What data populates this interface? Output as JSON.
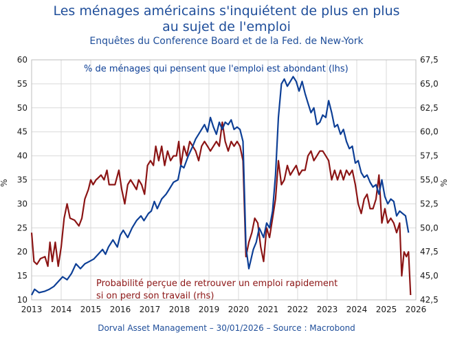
{
  "chart_data": {
    "type": "line",
    "title_line1": "Les ménages américains s'inquiétent de plus en plus",
    "title_line2": "au sujet de l'emploi",
    "subtitle": "Enquêtes du Conference Board et de la Fed. de New-York",
    "footer": "Dorval Asset Management – 30/01/2026 –  Source : Macrobond",
    "ylabel_left": "%",
    "ylabel_right": "%",
    "x_ticks": [
      "2013",
      "2014",
      "2015",
      "2016",
      "2017",
      "2018",
      "2019",
      "2020",
      "2021",
      "2022",
      "2023",
      "2024",
      "2025",
      "2026"
    ],
    "x_range": [
      2013,
      2026
    ],
    "left_axis": {
      "min": 10,
      "max": 60,
      "ticks": [
        "10",
        "15",
        "20",
        "25",
        "30",
        "35",
        "40",
        "45",
        "50",
        "55",
        "60"
      ]
    },
    "right_axis": {
      "min": 42.5,
      "max": 67.5,
      "ticks": [
        "42,5",
        "45,0",
        "47,5",
        "50,0",
        "52,5",
        "55,0",
        "57,5",
        "60,0",
        "62,5",
        "65,0",
        "67,5"
      ]
    },
    "series": [
      {
        "name": "% de ménages qui pensent que l'emploi est abondant (lhs)",
        "axis": "left",
        "color": "#0d3f96",
        "points": [
          [
            2013.0,
            11.0
          ],
          [
            2013.1,
            12.2
          ],
          [
            2013.25,
            11.5
          ],
          [
            2013.45,
            11.8
          ],
          [
            2013.6,
            12.2
          ],
          [
            2013.75,
            12.8
          ],
          [
            2013.9,
            13.8
          ],
          [
            2014.05,
            14.8
          ],
          [
            2014.2,
            14.2
          ],
          [
            2014.35,
            15.5
          ],
          [
            2014.5,
            17.5
          ],
          [
            2014.65,
            16.5
          ],
          [
            2014.8,
            17.5
          ],
          [
            2014.95,
            18.0
          ],
          [
            2015.1,
            18.5
          ],
          [
            2015.25,
            19.5
          ],
          [
            2015.4,
            20.5
          ],
          [
            2015.5,
            19.5
          ],
          [
            2015.6,
            21.0
          ],
          [
            2015.75,
            22.5
          ],
          [
            2015.9,
            21.0
          ],
          [
            2016.0,
            23.5
          ],
          [
            2016.1,
            24.5
          ],
          [
            2016.25,
            23.0
          ],
          [
            2016.4,
            25.0
          ],
          [
            2016.55,
            26.5
          ],
          [
            2016.7,
            27.5
          ],
          [
            2016.8,
            26.5
          ],
          [
            2016.95,
            28.0
          ],
          [
            2017.05,
            28.5
          ],
          [
            2017.15,
            30.5
          ],
          [
            2017.25,
            29.0
          ],
          [
            2017.4,
            31.0
          ],
          [
            2017.55,
            32.0
          ],
          [
            2017.65,
            33.0
          ],
          [
            2017.8,
            34.5
          ],
          [
            2017.95,
            35.0
          ],
          [
            2018.05,
            38.0
          ],
          [
            2018.15,
            37.5
          ],
          [
            2018.3,
            40.0
          ],
          [
            2018.45,
            42.0
          ],
          [
            2018.55,
            43.5
          ],
          [
            2018.7,
            45.0
          ],
          [
            2018.85,
            46.5
          ],
          [
            2018.95,
            45.0
          ],
          [
            2019.05,
            48.0
          ],
          [
            2019.15,
            46.0
          ],
          [
            2019.25,
            44.5
          ],
          [
            2019.35,
            47.0
          ],
          [
            2019.45,
            45.5
          ],
          [
            2019.55,
            47.0
          ],
          [
            2019.65,
            46.5
          ],
          [
            2019.75,
            47.5
          ],
          [
            2019.85,
            45.5
          ],
          [
            2019.95,
            46.0
          ],
          [
            2020.05,
            45.5
          ],
          [
            2020.15,
            43.0
          ],
          [
            2020.25,
            21.0
          ],
          [
            2020.35,
            16.5
          ],
          [
            2020.5,
            20.5
          ],
          [
            2020.6,
            22.0
          ],
          [
            2020.7,
            25.0
          ],
          [
            2020.85,
            23.0
          ],
          [
            2020.95,
            26.0
          ],
          [
            2021.05,
            25.0
          ],
          [
            2021.15,
            28.5
          ],
          [
            2021.25,
            36.0
          ],
          [
            2021.35,
            48.0
          ],
          [
            2021.45,
            55.0
          ],
          [
            2021.55,
            56.0
          ],
          [
            2021.65,
            54.5
          ],
          [
            2021.75,
            55.5
          ],
          [
            2021.85,
            56.5
          ],
          [
            2021.95,
            55.5
          ],
          [
            2022.05,
            53.5
          ],
          [
            2022.15,
            55.5
          ],
          [
            2022.25,
            53.0
          ],
          [
            2022.35,
            51.0
          ],
          [
            2022.45,
            49.0
          ],
          [
            2022.55,
            50.0
          ],
          [
            2022.65,
            46.5
          ],
          [
            2022.75,
            47.0
          ],
          [
            2022.85,
            48.5
          ],
          [
            2022.95,
            48.0
          ],
          [
            2023.05,
            51.5
          ],
          [
            2023.15,
            49.0
          ],
          [
            2023.25,
            46.0
          ],
          [
            2023.35,
            46.5
          ],
          [
            2023.45,
            44.5
          ],
          [
            2023.55,
            45.5
          ],
          [
            2023.65,
            43.0
          ],
          [
            2023.75,
            41.5
          ],
          [
            2023.85,
            42.0
          ],
          [
            2023.95,
            38.5
          ],
          [
            2024.05,
            39.0
          ],
          [
            2024.15,
            36.5
          ],
          [
            2024.25,
            35.5
          ],
          [
            2024.35,
            36.0
          ],
          [
            2024.45,
            34.5
          ],
          [
            2024.55,
            33.5
          ],
          [
            2024.65,
            34.0
          ],
          [
            2024.75,
            32.0
          ],
          [
            2024.85,
            35.0
          ],
          [
            2024.95,
            31.5
          ],
          [
            2025.05,
            30.0
          ],
          [
            2025.15,
            31.0
          ],
          [
            2025.25,
            30.5
          ],
          [
            2025.35,
            27.5
          ],
          [
            2025.45,
            28.5
          ],
          [
            2025.55,
            28.0
          ],
          [
            2025.65,
            27.5
          ],
          [
            2025.75,
            24.0
          ]
        ]
      },
      {
        "name": "Probabilité perçue de retrouver un emploi rapidement si on perd son travail (rhs)",
        "axis": "right",
        "color": "#8b1414",
        "points": [
          [
            2013.0,
            49.5
          ],
          [
            2013.08,
            46.5
          ],
          [
            2013.18,
            46.2
          ],
          [
            2013.3,
            46.8
          ],
          [
            2013.45,
            47.0
          ],
          [
            2013.55,
            46.0
          ],
          [
            2013.62,
            48.5
          ],
          [
            2013.7,
            46.5
          ],
          [
            2013.8,
            48.5
          ],
          [
            2013.9,
            46.0
          ],
          [
            2014.0,
            48.0
          ],
          [
            2014.1,
            51.0
          ],
          [
            2014.2,
            52.5
          ],
          [
            2014.3,
            51.0
          ],
          [
            2014.45,
            50.8
          ],
          [
            2014.6,
            50.2
          ],
          [
            2014.7,
            51.0
          ],
          [
            2014.8,
            53.0
          ],
          [
            2014.92,
            54.0
          ],
          [
            2015.0,
            55.0
          ],
          [
            2015.08,
            54.5
          ],
          [
            2015.18,
            55.0
          ],
          [
            2015.25,
            55.2
          ],
          [
            2015.35,
            55.5
          ],
          [
            2015.45,
            55.0
          ],
          [
            2015.55,
            56.0
          ],
          [
            2015.62,
            54.5
          ],
          [
            2015.72,
            54.5
          ],
          [
            2015.82,
            54.5
          ],
          [
            2015.95,
            56.0
          ],
          [
            2016.05,
            54.0
          ],
          [
            2016.15,
            52.5
          ],
          [
            2016.25,
            54.5
          ],
          [
            2016.35,
            55.0
          ],
          [
            2016.45,
            54.5
          ],
          [
            2016.55,
            54.0
          ],
          [
            2016.62,
            55.0
          ],
          [
            2016.72,
            54.5
          ],
          [
            2016.82,
            53.5
          ],
          [
            2016.92,
            56.5
          ],
          [
            2017.02,
            57.0
          ],
          [
            2017.12,
            56.5
          ],
          [
            2017.2,
            58.5
          ],
          [
            2017.3,
            57.0
          ],
          [
            2017.4,
            58.5
          ],
          [
            2017.5,
            56.5
          ],
          [
            2017.6,
            58.0
          ],
          [
            2017.7,
            57.0
          ],
          [
            2017.8,
            57.5
          ],
          [
            2017.9,
            57.5
          ],
          [
            2017.98,
            59.0
          ],
          [
            2018.05,
            56.5
          ],
          [
            2018.15,
            58.5
          ],
          [
            2018.25,
            57.5
          ],
          [
            2018.35,
            59.0
          ],
          [
            2018.45,
            58.5
          ],
          [
            2018.55,
            58.0
          ],
          [
            2018.65,
            57.0
          ],
          [
            2018.75,
            58.5
          ],
          [
            2018.85,
            59.0
          ],
          [
            2018.95,
            58.5
          ],
          [
            2019.05,
            58.0
          ],
          [
            2019.15,
            58.5
          ],
          [
            2019.25,
            59.0
          ],
          [
            2019.35,
            58.5
          ],
          [
            2019.45,
            61.0
          ],
          [
            2019.55,
            59.0
          ],
          [
            2019.65,
            58.0
          ],
          [
            2019.75,
            59.0
          ],
          [
            2019.85,
            58.5
          ],
          [
            2019.95,
            59.0
          ],
          [
            2020.05,
            58.5
          ],
          [
            2020.15,
            57.0
          ],
          [
            2020.25,
            47.0
          ],
          [
            2020.35,
            48.5
          ],
          [
            2020.45,
            49.5
          ],
          [
            2020.55,
            51.0
          ],
          [
            2020.65,
            50.5
          ],
          [
            2020.75,
            48.0
          ],
          [
            2020.85,
            46.5
          ],
          [
            2020.95,
            50.0
          ],
          [
            2021.05,
            49.0
          ],
          [
            2021.15,
            51.0
          ],
          [
            2021.25,
            53.0
          ],
          [
            2021.35,
            57.0
          ],
          [
            2021.45,
            54.5
          ],
          [
            2021.55,
            55.0
          ],
          [
            2021.65,
            56.5
          ],
          [
            2021.75,
            55.5
          ],
          [
            2021.85,
            56.0
          ],
          [
            2021.95,
            56.5
          ],
          [
            2022.05,
            55.5
          ],
          [
            2022.15,
            56.0
          ],
          [
            2022.25,
            56.0
          ],
          [
            2022.35,
            57.5
          ],
          [
            2022.45,
            58.0
          ],
          [
            2022.55,
            57.0
          ],
          [
            2022.65,
            57.5
          ],
          [
            2022.75,
            58.0
          ],
          [
            2022.85,
            58.0
          ],
          [
            2022.95,
            57.5
          ],
          [
            2023.05,
            57.0
          ],
          [
            2023.15,
            55.0
          ],
          [
            2023.25,
            56.0
          ],
          [
            2023.35,
            55.0
          ],
          [
            2023.45,
            56.0
          ],
          [
            2023.55,
            55.0
          ],
          [
            2023.65,
            56.0
          ],
          [
            2023.75,
            55.5
          ],
          [
            2023.85,
            56.0
          ],
          [
            2023.95,
            54.5
          ],
          [
            2024.05,
            52.5
          ],
          [
            2024.15,
            51.5
          ],
          [
            2024.25,
            53.0
          ],
          [
            2024.35,
            53.5
          ],
          [
            2024.45,
            52.0
          ],
          [
            2024.55,
            52.0
          ],
          [
            2024.65,
            53.0
          ],
          [
            2024.75,
            55.5
          ],
          [
            2024.85,
            50.5
          ],
          [
            2024.95,
            52.0
          ],
          [
            2025.05,
            50.5
          ],
          [
            2025.15,
            51.0
          ],
          [
            2025.25,
            50.5
          ],
          [
            2025.35,
            49.5
          ],
          [
            2025.45,
            50.5
          ],
          [
            2025.52,
            45.0
          ],
          [
            2025.6,
            47.5
          ],
          [
            2025.68,
            47.0
          ],
          [
            2025.75,
            47.5
          ],
          [
            2025.82,
            43.0
          ]
        ]
      }
    ],
    "annotation_blue": "% de ménages qui pensent que l'emploi est abondant (lhs)",
    "annotation_red_line1": "Probabilité perçue de retrouver un emploi rapidement",
    "annotation_red_line2": "si on perd son travail (rhs)"
  }
}
